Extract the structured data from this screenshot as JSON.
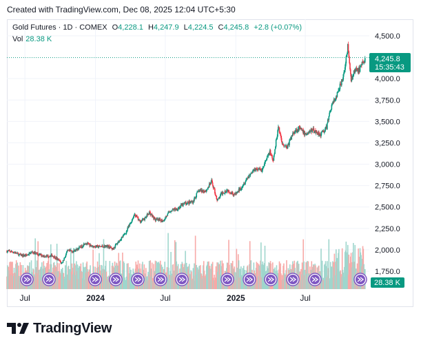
{
  "caption": "Created with TradingView.com, Dec 08, 2025 12:04 UTC+5:30",
  "legend": {
    "symbol": "Gold Futures · 1D · COMEX",
    "o_label": "O",
    "o_value": "4,228.1",
    "h_label": "H",
    "h_value": "4,247.9",
    "l_label": "L",
    "l_value": "4,224.5",
    "c_label": "C",
    "c_value": "4,245.8",
    "change": "+2.8 (+0.07%)"
  },
  "volume": {
    "label": "Vol",
    "value": "28.38 K",
    "badge": "28.38 K"
  },
  "price_badge": {
    "price": "4,245.8",
    "countdown": "15:35:43"
  },
  "brand": "TradingView",
  "colors": {
    "up": "#089981",
    "down": "#f23645",
    "vol_up": "#9fd6cd",
    "vol_down": "#f7a9a7",
    "grid": "#f0f3fa",
    "badge": "#089981"
  },
  "chart_data": {
    "type": "candlestick",
    "y_axis": {
      "ticks": [
        1750,
        2000,
        2250,
        2500,
        2750,
        3000,
        3250,
        3500,
        3750,
        4000,
        4500
      ],
      "tick_labels": [
        "1,750.0",
        "2,000.0",
        "2,250.0",
        "2,500.0",
        "2,750.0",
        "3,000.0",
        "3,250.0",
        "3,500.0",
        "3,750.0",
        "4,000.0",
        "4,500.0"
      ],
      "range": [
        1700,
        4600
      ]
    },
    "x_axis": {
      "ticks": [
        "2023-07-01",
        "2024-01-01",
        "2024-07-01",
        "2025-01-01",
        "2025-07-01"
      ],
      "tick_labels": [
        "Jul",
        "2024",
        "Jul",
        "2025",
        "Jul"
      ],
      "range": [
        "2023-05-15",
        "2025-12-15"
      ]
    },
    "last_close": 4245.8,
    "close_series": [
      [
        "2023-05-15",
        1985
      ],
      [
        "2023-06-01",
        1975
      ],
      [
        "2023-06-20",
        1935
      ],
      [
        "2023-07-05",
        1935
      ],
      [
        "2023-07-20",
        1975
      ],
      [
        "2023-08-05",
        1945
      ],
      [
        "2023-08-25",
        1925
      ],
      [
        "2023-09-10",
        1935
      ],
      [
        "2023-09-28",
        1875
      ],
      [
        "2023-10-05",
        1840
      ],
      [
        "2023-10-20",
        1985
      ],
      [
        "2023-11-05",
        1985
      ],
      [
        "2023-11-28",
        2045
      ],
      [
        "2023-12-04",
        2085
      ],
      [
        "2023-12-20",
        2045
      ],
      [
        "2024-01-10",
        2035
      ],
      [
        "2024-02-01",
        2045
      ],
      [
        "2024-02-15",
        2010
      ],
      [
        "2024-03-01",
        2095
      ],
      [
        "2024-03-20",
        2200
      ],
      [
        "2024-04-05",
        2350
      ],
      [
        "2024-04-12",
        2420
      ],
      [
        "2024-04-25",
        2330
      ],
      [
        "2024-05-10",
        2370
      ],
      [
        "2024-05-20",
        2440
      ],
      [
        "2024-06-05",
        2350
      ],
      [
        "2024-06-25",
        2340
      ],
      [
        "2024-07-15",
        2460
      ],
      [
        "2024-08-01",
        2480
      ],
      [
        "2024-08-20",
        2540
      ],
      [
        "2024-09-10",
        2560
      ],
      [
        "2024-09-26",
        2690
      ],
      [
        "2024-10-15",
        2690
      ],
      [
        "2024-10-30",
        2800
      ],
      [
        "2024-11-14",
        2570
      ],
      [
        "2024-11-25",
        2660
      ],
      [
        "2024-12-10",
        2700
      ],
      [
        "2024-12-30",
        2640
      ],
      [
        "2025-01-15",
        2730
      ],
      [
        "2025-02-01",
        2850
      ],
      [
        "2025-02-20",
        2950
      ],
      [
        "2025-03-10",
        2930
      ],
      [
        "2025-03-31",
        3150
      ],
      [
        "2025-04-08",
        3020
      ],
      [
        "2025-04-22",
        3450
      ],
      [
        "2025-05-01",
        3250
      ],
      [
        "2025-05-15",
        3200
      ],
      [
        "2025-06-01",
        3380
      ],
      [
        "2025-06-15",
        3420
      ],
      [
        "2025-07-01",
        3350
      ],
      [
        "2025-07-20",
        3400
      ],
      [
        "2025-08-10",
        3350
      ],
      [
        "2025-08-25",
        3420
      ],
      [
        "2025-09-05",
        3650
      ],
      [
        "2025-09-25",
        3850
      ],
      [
        "2025-10-10",
        4050
      ],
      [
        "2025-10-20",
        4380
      ],
      [
        "2025-10-28",
        3990
      ],
      [
        "2025-11-10",
        4110
      ],
      [
        "2025-11-20",
        4100
      ],
      [
        "2025-12-05",
        4245.8
      ]
    ],
    "volume_markers": [
      "dividend-arrow"
    ]
  }
}
